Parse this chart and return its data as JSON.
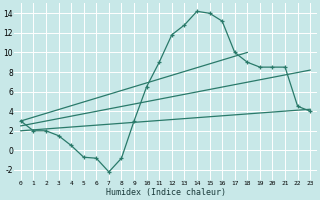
{
  "bg_color": "#c8e8e8",
  "grid_color": "#ffffff",
  "line_color": "#2a7a6a",
  "xlabel": "Humidex (Indice chaleur)",
  "ylim": [
    -3,
    15
  ],
  "xlim": [
    -0.5,
    23.5
  ],
  "yticks": [
    -2,
    0,
    2,
    4,
    6,
    8,
    10,
    12,
    14
  ],
  "xticks": [
    0,
    1,
    2,
    3,
    4,
    5,
    6,
    7,
    8,
    9,
    10,
    11,
    12,
    13,
    14,
    15,
    16,
    17,
    18,
    19,
    20,
    21,
    22,
    23
  ],
  "line1_x": [
    0,
    1,
    2,
    3,
    4,
    5,
    6,
    7,
    8,
    9,
    10,
    11,
    12,
    13,
    14,
    15,
    16,
    17,
    18,
    19,
    20,
    21,
    22,
    23
  ],
  "line1_y": [
    3.0,
    2.0,
    2.0,
    1.5,
    0.5,
    -0.7,
    -0.8,
    -2.2,
    -0.8,
    3.0,
    6.5,
    9.0,
    11.8,
    12.8,
    14.2,
    14.0,
    13.2,
    10.0,
    9.0,
    8.5,
    8.5,
    8.5,
    4.5,
    4.0
  ],
  "line2_x": [
    0,
    18
  ],
  "line2_y": [
    3.0,
    10.0
  ],
  "line3_x": [
    0,
    23
  ],
  "line3_y": [
    2.0,
    4.2
  ],
  "line4_x": [
    0,
    23
  ],
  "line4_y": [
    2.5,
    8.2
  ]
}
